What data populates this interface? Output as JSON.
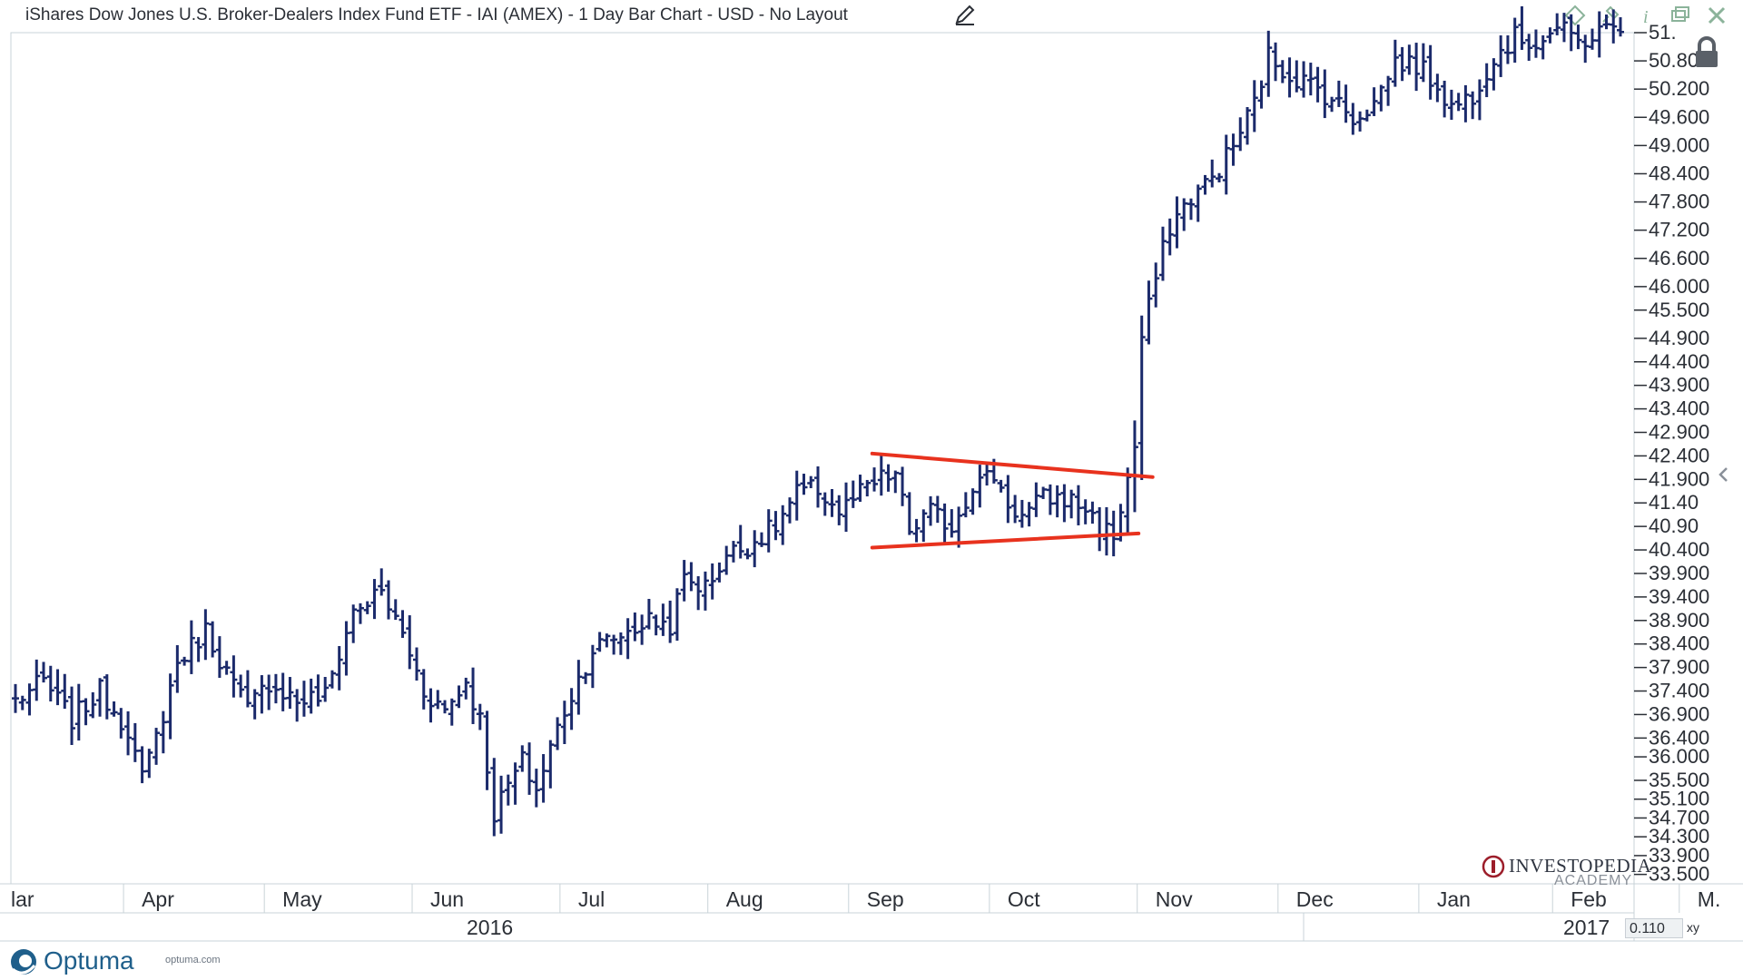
{
  "window": {
    "title": "iShares Dow Jones U.S. Broker-Dealers Index Fund ETF - IAI (AMEX) - 1 Day Bar Chart - USD - No Layout"
  },
  "footer": {
    "brand": "Optuma",
    "url": "optuma.com",
    "scale_value": "0.110",
    "xy_label": "xy"
  },
  "watermark": {
    "name": "INVESTOPEDIA",
    "sub": "ACADEMY"
  },
  "icons": [
    "edit-pencil-icon",
    "diamond-icon",
    "pin-icon",
    "info-icon",
    "restore-icon",
    "close-icon",
    "lock-icon",
    "collapse-arrow-icon",
    "optuma-logo-icon",
    "investopedia-logo-icon"
  ],
  "colors": {
    "bars": "#1b2a6b",
    "trendline": "#e8321e",
    "axis_text": "#2b2f36"
  },
  "chart_data": {
    "type": "bar",
    "style": "OHLC",
    "title": "iShares Dow Jones U.S. Broker-Dealers Index Fund ETF - IAI (AMEX) - 1 Day Bar Chart - USD - No Layout",
    "y_axis": {
      "side": "right",
      "ylim": [
        33.3,
        51.4
      ],
      "ticks": [
        "51.",
        "50.800",
        "50.200",
        "49.600",
        "49.000",
        "48.400",
        "47.800",
        "47.200",
        "46.600",
        "46.000",
        "45.500",
        "44.900",
        "44.400",
        "43.900",
        "43.400",
        "42.900",
        "42.400",
        "41.900",
        "41.40",
        "40.90",
        "40.400",
        "39.900",
        "39.400",
        "38.900",
        "38.400",
        "37.900",
        "37.400",
        "36.900",
        "36.400",
        "36.000",
        "35.500",
        "35.100",
        "34.700",
        "34.300",
        "33.900",
        "33.500"
      ],
      "tick_values": [
        51.4,
        50.8,
        50.2,
        49.6,
        49.0,
        48.4,
        47.8,
        47.2,
        46.6,
        46.0,
        45.5,
        44.9,
        44.4,
        43.9,
        43.4,
        42.9,
        42.4,
        41.9,
        41.4,
        40.9,
        40.4,
        39.9,
        39.4,
        38.9,
        38.4,
        37.9,
        37.4,
        36.9,
        36.4,
        36.0,
        35.5,
        35.1,
        34.7,
        34.3,
        33.9,
        33.5
      ]
    },
    "x_axis": {
      "month_labels": [
        "lar",
        "Apr",
        "May",
        "Jun",
        "Jul",
        "Aug",
        "Sep",
        "Oct",
        "Nov",
        "Dec",
        "Jan",
        "Feb",
        "M."
      ],
      "month_index": [
        0,
        20,
        40,
        61,
        82,
        103,
        123,
        143,
        164,
        184,
        204,
        223,
        241
      ],
      "year_labels": [
        "2016",
        "2017"
      ],
      "year_index": [
        72,
        240
      ]
    },
    "anchors": [
      [
        0,
        37.2
      ],
      [
        4,
        37.6
      ],
      [
        8,
        36.8
      ],
      [
        12,
        37.4
      ],
      [
        16,
        36.6
      ],
      [
        18,
        35.5
      ],
      [
        20,
        36.4
      ],
      [
        23,
        38.0
      ],
      [
        27,
        38.7
      ],
      [
        30,
        37.8
      ],
      [
        33,
        37.0
      ],
      [
        36,
        37.6
      ],
      [
        40,
        37.2
      ],
      [
        44,
        37.3
      ],
      [
        48,
        39.1
      ],
      [
        52,
        39.5
      ],
      [
        55,
        38.6
      ],
      [
        58,
        37.4
      ],
      [
        61,
        37.0
      ],
      [
        64,
        37.6
      ],
      [
        66,
        36.8
      ],
      [
        68,
        34.8
      ],
      [
        70,
        35.4
      ],
      [
        72,
        35.9
      ],
      [
        74,
        35.3
      ],
      [
        76,
        36.2
      ],
      [
        78,
        37.0
      ],
      [
        82,
        38.3
      ],
      [
        86,
        38.6
      ],
      [
        90,
        38.9
      ],
      [
        93,
        38.8
      ],
      [
        95,
        39.8
      ],
      [
        98,
        39.6
      ],
      [
        101,
        40.3
      ],
      [
        104,
        40.5
      ],
      [
        108,
        40.9
      ],
      [
        111,
        41.6
      ],
      [
        114,
        41.7
      ],
      [
        117,
        41.2
      ],
      [
        120,
        41.6
      ],
      [
        123,
        41.9
      ],
      [
        125,
        42.0
      ],
      [
        127,
        40.8
      ],
      [
        130,
        41.2
      ],
      [
        133,
        40.9
      ],
      [
        136,
        41.8
      ],
      [
        139,
        42.0
      ],
      [
        141,
        41.4
      ],
      [
        143,
        41.1
      ],
      [
        146,
        41.5
      ],
      [
        149,
        41.5
      ],
      [
        152,
        41.3
      ],
      [
        154,
        40.9
      ],
      [
        156,
        40.7
      ],
      [
        158,
        41.9
      ],
      [
        159,
        42.6
      ],
      [
        160,
        44.9
      ],
      [
        162,
        46.2
      ],
      [
        164,
        47.3
      ],
      [
        167,
        47.9
      ],
      [
        170,
        48.3
      ],
      [
        173,
        49.0
      ],
      [
        176,
        49.9
      ],
      [
        178,
        50.9
      ],
      [
        181,
        50.5
      ],
      [
        184,
        50.3
      ],
      [
        187,
        50.0
      ],
      [
        190,
        49.6
      ],
      [
        193,
        49.9
      ],
      [
        196,
        50.8
      ],
      [
        199,
        50.7
      ],
      [
        202,
        50.3
      ],
      [
        204,
        49.8
      ],
      [
        207,
        50.1
      ],
      [
        210,
        50.9
      ],
      [
        213,
        51.3
      ],
      [
        216,
        51.2
      ],
      [
        219,
        51.5
      ],
      [
        222,
        51.2
      ],
      [
        225,
        51.4
      ],
      [
        228,
        51.6
      ]
    ],
    "n_bars": 229,
    "trendlines": [
      {
        "name": "upper",
        "from": [
          123,
          42.45
        ],
        "to": [
          160,
          41.95
        ]
      },
      {
        "name": "lower",
        "from": [
          123,
          40.45
        ],
        "to": [
          158,
          40.75
        ]
      }
    ],
    "grid": false,
    "legend": "none"
  }
}
